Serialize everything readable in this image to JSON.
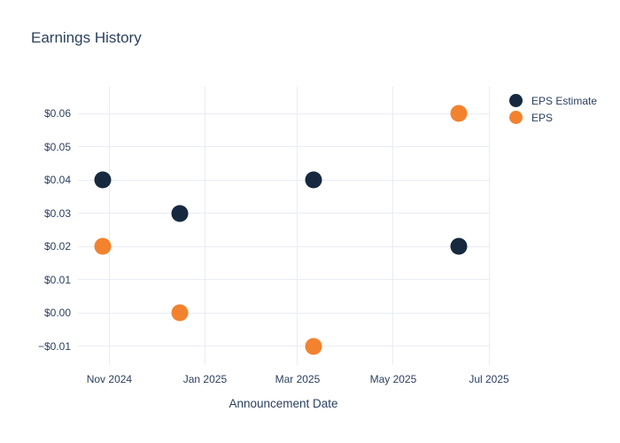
{
  "title": "Earnings History",
  "colors": {
    "background": "#ffffff",
    "text": "#2a3f5f",
    "grid": "#e9ecf3",
    "eps_estimate": "#16293f",
    "eps": "#f3822f"
  },
  "legend": {
    "position": "top-right",
    "items": [
      {
        "label": "EPS Estimate",
        "color": "#16293f"
      },
      {
        "label": "EPS",
        "color": "#f3822f"
      }
    ]
  },
  "chart_data": {
    "type": "scatter",
    "title": "Earnings History",
    "xlabel": "Announcement Date",
    "ylabel": "",
    "grid": true,
    "legend_position": "top-right",
    "x_range": [
      "2024-10-12",
      "2025-07-01"
    ],
    "y_range": [
      -0.0157,
      0.068
    ],
    "x_ticks": [
      {
        "value": "2024-11-01",
        "label": "Nov 2024"
      },
      {
        "value": "2025-01-01",
        "label": "Jan 2025"
      },
      {
        "value": "2025-03-01",
        "label": "Mar 2025"
      },
      {
        "value": "2025-05-01",
        "label": "May 2025"
      },
      {
        "value": "2025-07-01",
        "label": "Jul 2025"
      }
    ],
    "y_ticks": [
      {
        "value": 0.06,
        "label": "$0.06"
      },
      {
        "value": 0.05,
        "label": "$0.05"
      },
      {
        "value": 0.04,
        "label": "$0.04"
      },
      {
        "value": 0.03,
        "label": "$0.03"
      },
      {
        "value": 0.02,
        "label": "$0.02"
      },
      {
        "value": 0.01,
        "label": "$0.01"
      },
      {
        "value": 0.0,
        "label": "$0.00"
      },
      {
        "value": -0.01,
        "label": "−$0.01"
      }
    ],
    "marker_size": 19,
    "series": [
      {
        "name": "EPS Estimate",
        "color": "#16293f",
        "points": [
          {
            "date": "2024-10-28",
            "value": 0.04
          },
          {
            "date": "2024-12-16",
            "value": 0.03
          },
          {
            "date": "2025-03-11",
            "value": 0.04
          },
          {
            "date": "2025-06-12",
            "value": 0.02
          }
        ]
      },
      {
        "name": "EPS",
        "color": "#f3822f",
        "points": [
          {
            "date": "2024-10-28",
            "value": 0.02
          },
          {
            "date": "2024-12-16",
            "value": 0.0
          },
          {
            "date": "2025-03-11",
            "value": -0.01
          },
          {
            "date": "2025-06-12",
            "value": 0.06
          }
        ]
      }
    ]
  }
}
